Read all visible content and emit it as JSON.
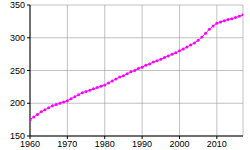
{
  "chart_data": {
    "type": "line",
    "x": [
      1960,
      1961,
      1962,
      1963,
      1964,
      1965,
      1966,
      1967,
      1968,
      1969,
      1970,
      1971,
      1972,
      1973,
      1974,
      1975,
      1976,
      1977,
      1978,
      1979,
      1980,
      1981,
      1982,
      1983,
      1984,
      1985,
      1986,
      1987,
      1988,
      1989,
      1990,
      1991,
      1992,
      1993,
      1994,
      1995,
      1996,
      1997,
      1998,
      1999,
      2000,
      2001,
      2002,
      2003,
      2004,
      2005,
      2006,
      2007,
      2008,
      2009,
      2010,
      2011,
      2012,
      2013,
      2014,
      2015,
      2016,
      2017
    ],
    "values": [
      175,
      179,
      183,
      187,
      190,
      193,
      196,
      198,
      200,
      202,
      204,
      207,
      210,
      213,
      216,
      218,
      220,
      222,
      224,
      226,
      228,
      231,
      234,
      237,
      240,
      242,
      245,
      248,
      250,
      253,
      255,
      258,
      260,
      263,
      265,
      267,
      270,
      272,
      275,
      277,
      280,
      283,
      286,
      289,
      292,
      296,
      301,
      307,
      313,
      318,
      322,
      324,
      326,
      328,
      329,
      331,
      333,
      335
    ],
    "color": "#ff00ff",
    "marker": "o",
    "xlim": [
      1960,
      2017
    ],
    "xticks": [
      1960,
      1970,
      1980,
      1990,
      2000,
      2010
    ],
    "ylim": [
      150,
      350
    ],
    "yticks": [
      150,
      200,
      250,
      300,
      350
    ],
    "grid": true
  }
}
